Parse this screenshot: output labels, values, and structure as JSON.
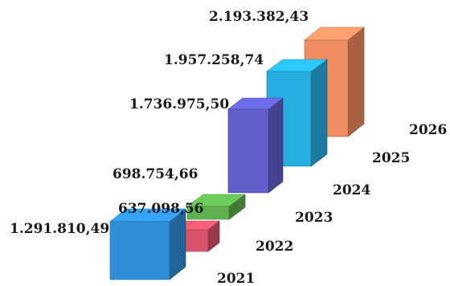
{
  "chart_data": {
    "type": "bar",
    "style": "3d-staircase",
    "title": "",
    "xlabel": "",
    "ylabel": "",
    "grid": false,
    "legend": "none",
    "categories": [
      "2021",
      "2022",
      "2023",
      "2024",
      "2025",
      "2026"
    ],
    "values": [
      1291810.49,
      637098.56,
      698754.66,
      1736975.5,
      1957258.74,
      2193382.43
    ],
    "data_labels": [
      "1.291.810,49",
      "637.098,56",
      "698.754,66",
      "1.736.975,50",
      "1.957.258,74",
      "2.193.382,43"
    ],
    "colors": [
      "#2f8fd8",
      "#d9536a",
      "#5fb14e",
      "#6060cc",
      "#26aee0",
      "#f08c60"
    ]
  }
}
